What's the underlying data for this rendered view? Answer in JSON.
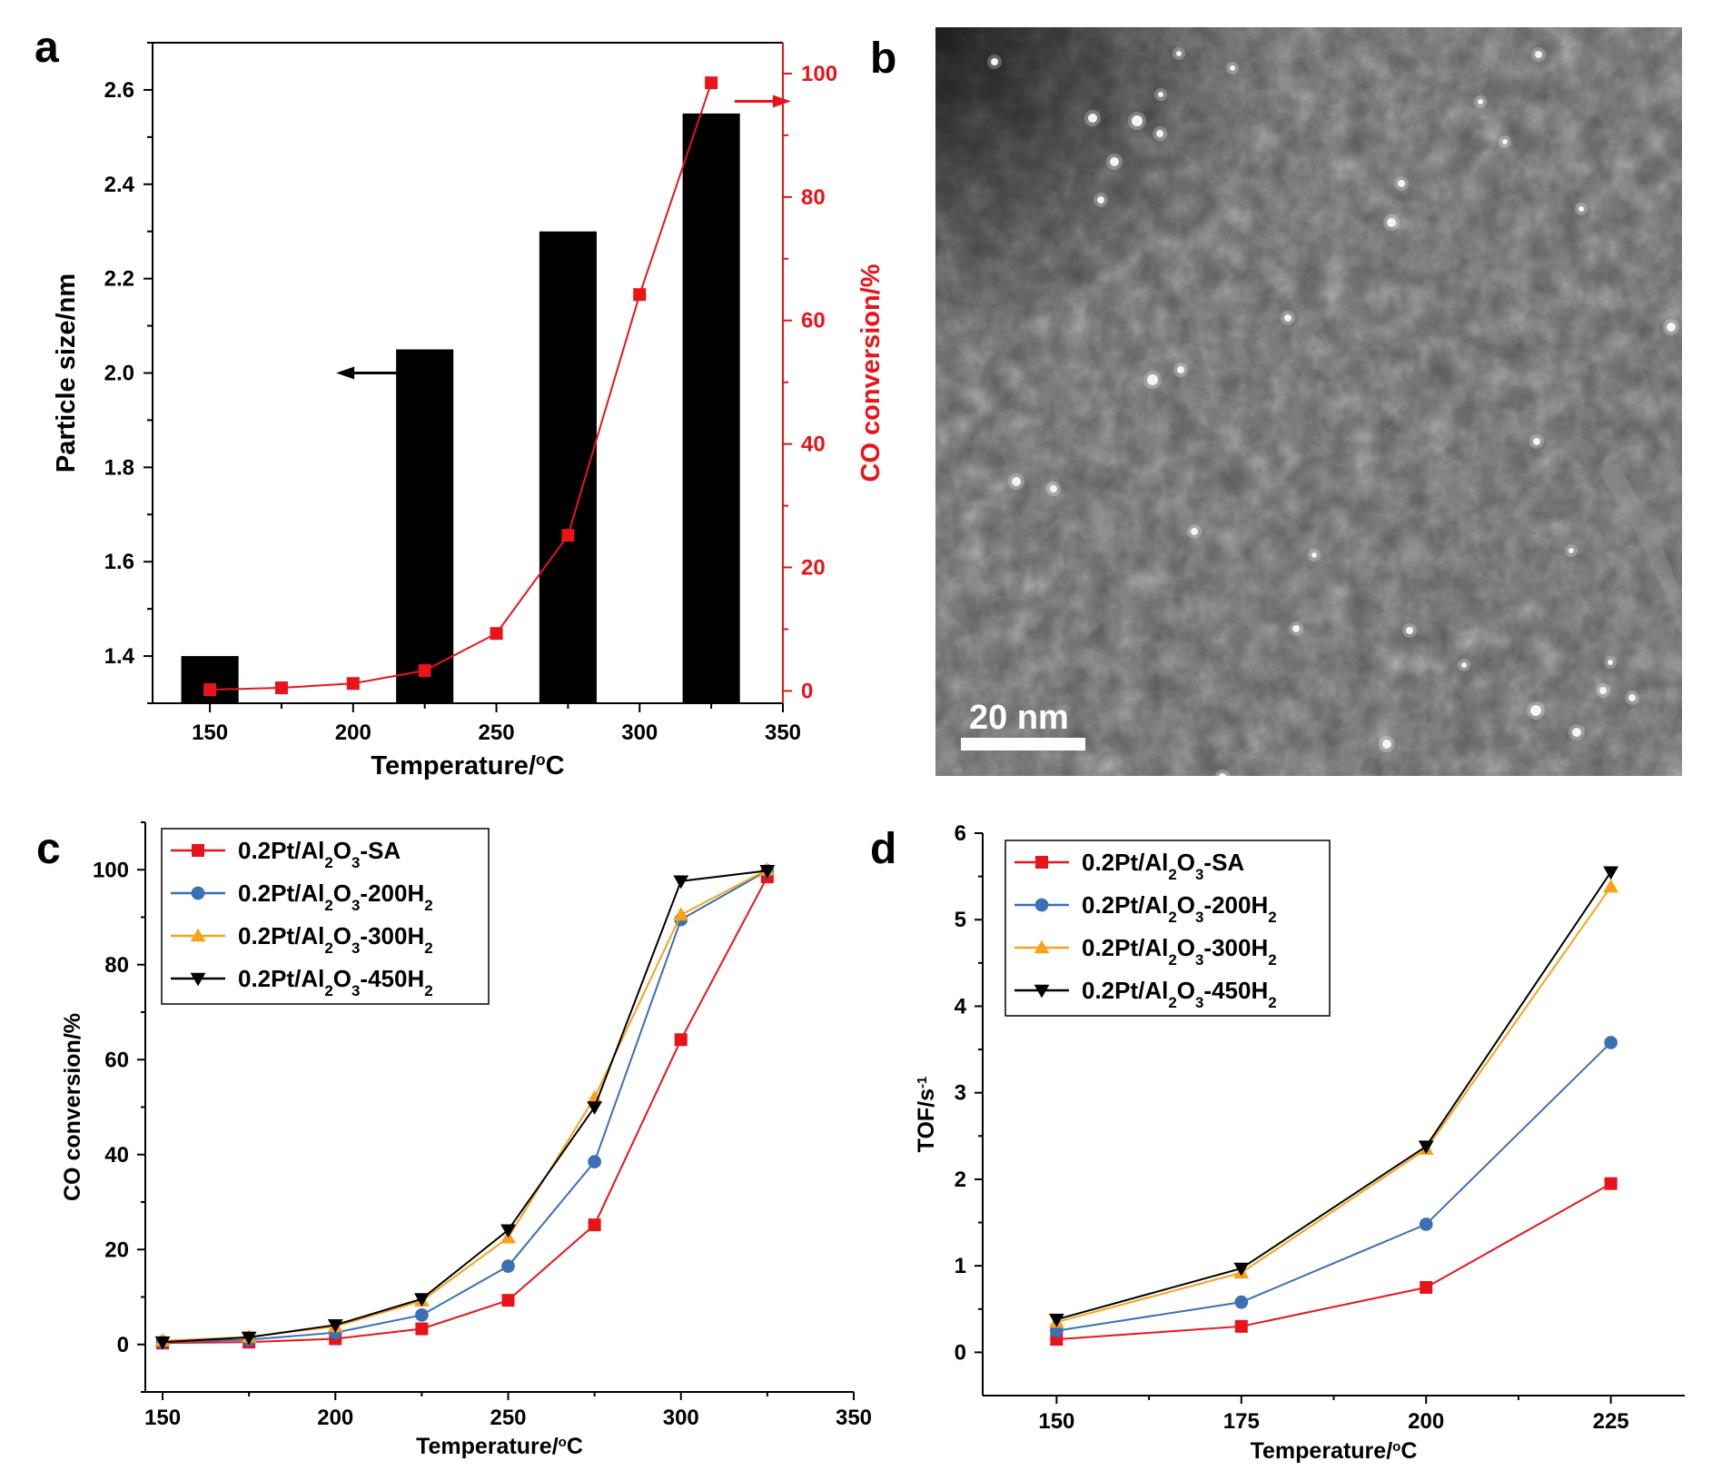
{
  "colors": {
    "black": "#000000",
    "red": "#e8141a",
    "blue": "#3b6fb6",
    "orange": "#f7a21b",
    "micrograph_bg": "#555555"
  },
  "panel_labels": {
    "a": "a",
    "b": "b",
    "c": "c",
    "d": "d"
  },
  "panel_b": {
    "scale_bar_label": "20 nm",
    "description_icon": "tem-micrograph"
  },
  "chart_data": [
    {
      "id": "a",
      "type": "bar+line",
      "xlabel": "Temperature/",
      "xlabel_sup": "o",
      "xlabel_tail": "C",
      "xlim": [
        130,
        350
      ],
      "x_ticks": [
        150,
        200,
        250,
        300,
        350
      ],
      "ylabel": "Particle size/nm",
      "ylim": [
        1.3,
        2.7
      ],
      "y_ticks": [
        1.4,
        1.6,
        1.8,
        2.0,
        2.2,
        2.4,
        2.6
      ],
      "y_tick_labels": [
        "1.4",
        "1.6",
        "1.8",
        "2.0",
        "2.2",
        "2.4",
        "2.6"
      ],
      "y2label": "CO conversion/%",
      "y2lim": [
        -2,
        105
      ],
      "y2_ticks": [
        0,
        20,
        40,
        60,
        80,
        100
      ],
      "bars": {
        "name": "Particle size",
        "x": [
          150,
          225,
          275,
          325
        ],
        "values": [
          1.4,
          2.05,
          2.3,
          2.55
        ],
        "width": 20
      },
      "line": {
        "name": "CO conversion",
        "x": [
          150,
          175,
          200,
          225,
          250,
          275,
          300,
          325
        ],
        "values": [
          0.2,
          0.5,
          1.2,
          3.3,
          9.3,
          25.2,
          64.2,
          98.5
        ]
      },
      "annotations": [
        {
          "type": "left-arrow",
          "x": 215,
          "y": 2.0
        },
        {
          "type": "right-arrow",
          "x": 330,
          "y2": 95.5
        }
      ]
    },
    {
      "id": "c",
      "type": "line",
      "xlabel": "Temperature/",
      "xlabel_sup": "o",
      "xlabel_tail": "C",
      "xlim": [
        145,
        350
      ],
      "x_ticks": [
        150,
        200,
        250,
        300,
        350
      ],
      "ylabel": "CO conversion/%",
      "ylim": [
        -10,
        110
      ],
      "y_ticks": [
        0,
        20,
        40,
        60,
        80,
        100
      ],
      "x": [
        150,
        175,
        200,
        225,
        250,
        275,
        300,
        325
      ],
      "series": [
        {
          "name_main": "0.2Pt/Al",
          "name_sub1": "2",
          "name_mid": "O",
          "name_sub2": "3",
          "name_tail": "-SA",
          "name_sub3": "",
          "color": "#e8141a",
          "marker": "square",
          "values": [
            0.3,
            0.5,
            1.2,
            3.3,
            9.3,
            25.2,
            64.2,
            98.5
          ]
        },
        {
          "name_main": "0.2Pt/Al",
          "name_sub1": "2",
          "name_mid": "O",
          "name_sub2": "3",
          "name_tail": "-200H",
          "name_sub3": "2",
          "color": "#3b6fb6",
          "marker": "circle",
          "values": [
            0.5,
            1.0,
            2.5,
            6.2,
            16.5,
            38.5,
            89.5,
            99.8
          ]
        },
        {
          "name_main": "0.2Pt/Al",
          "name_sub1": "2",
          "name_mid": "O",
          "name_sub2": "3",
          "name_tail": "-300H",
          "name_sub3": "2",
          "color": "#f7a21b",
          "marker": "triangle-up",
          "values": [
            0.8,
            1.6,
            3.8,
            9.2,
            22.5,
            52.0,
            90.5,
            100
          ]
        },
        {
          "name_main": "0.2Pt/Al",
          "name_sub1": "2",
          "name_mid": "O",
          "name_sub2": "3",
          "name_tail": "-450H",
          "name_sub3": "2",
          "color": "#000000",
          "marker": "triangle-down",
          "values": [
            0.5,
            1.5,
            4.1,
            9.6,
            24.1,
            50.0,
            97.6,
            99.8
          ]
        }
      ],
      "legend_position": "top-left"
    },
    {
      "id": "d",
      "type": "line",
      "xlabel": "Temperature/",
      "xlabel_sup": "o",
      "xlabel_tail": "C",
      "xlim": [
        140,
        235
      ],
      "x_ticks": [
        150,
        175,
        200,
        225
      ],
      "ylabel": "TOF/s",
      "ylabel_sup": "-1",
      "ylim": [
        -0.5,
        6
      ],
      "y_ticks": [
        0,
        1,
        2,
        3,
        4,
        5,
        6
      ],
      "x": [
        150,
        175,
        200,
        225
      ],
      "series": [
        {
          "name_main": "0.2Pt/Al",
          "name_sub1": "2",
          "name_mid": "O",
          "name_sub2": "3",
          "name_tail": "-SA",
          "name_sub3": "",
          "color": "#e8141a",
          "marker": "square",
          "values": [
            0.15,
            0.3,
            0.75,
            1.95
          ]
        },
        {
          "name_main": "0.2Pt/Al",
          "name_sub1": "2",
          "name_mid": "O",
          "name_sub2": "3",
          "name_tail": "-200H",
          "name_sub3": "2",
          "color": "#3b6fb6",
          "marker": "circle",
          "values": [
            0.25,
            0.58,
            1.48,
            3.58
          ]
        },
        {
          "name_main": "0.2Pt/Al",
          "name_sub1": "2",
          "name_mid": "O",
          "name_sub2": "3",
          "name_tail": "-300H",
          "name_sub3": "2",
          "color": "#f7a21b",
          "marker": "triangle-up",
          "values": [
            0.35,
            0.92,
            2.35,
            5.38
          ]
        },
        {
          "name_main": "0.2Pt/Al",
          "name_sub1": "2",
          "name_mid": "O",
          "name_sub2": "3",
          "name_tail": "-450H",
          "name_sub3": "2",
          "color": "#000000",
          "marker": "triangle-down",
          "values": [
            0.38,
            0.97,
            2.38,
            5.55
          ]
        }
      ],
      "legend_position": "top-left"
    }
  ]
}
